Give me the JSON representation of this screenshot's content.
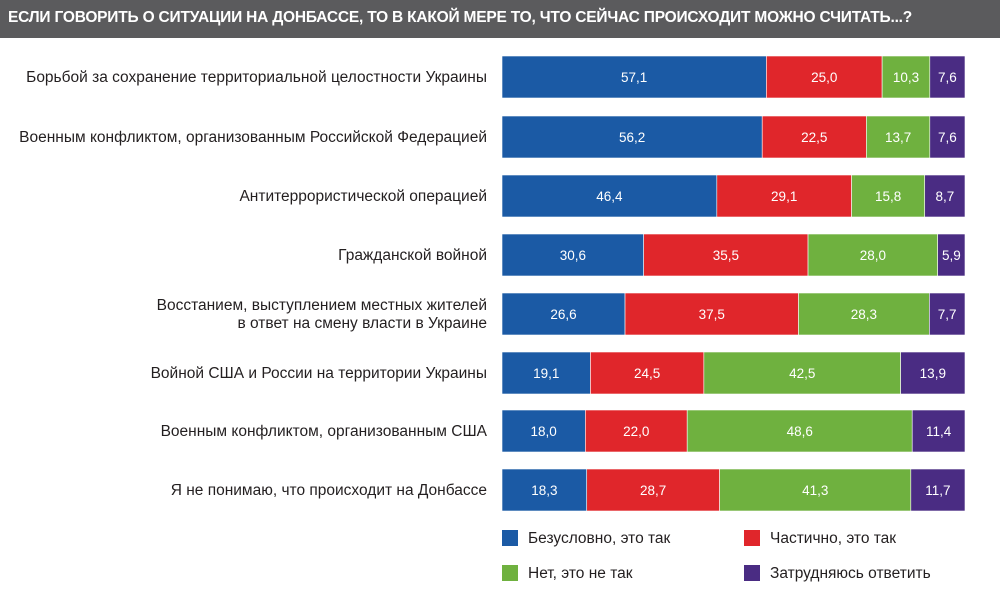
{
  "chart_data": {
    "type": "bar",
    "stacked": true,
    "orientation": "horizontal",
    "title": "ЕСЛИ ГОВОРИТЬ О СИТУАЦИИ НА ДОНБАССЕ, ТО В КАКОЙ МЕРЕ ТО, ЧТО СЕЙЧАС ПРОИСХОДИТ МОЖНО СЧИТАТЬ...?",
    "categories": [
      [
        "Борьбой за сохранение территориальной целостности Украины"
      ],
      [
        "Военным конфликтом, организованным Российской Федерацией"
      ],
      [
        "Антитеррористической операцией"
      ],
      [
        "Гражданской войной"
      ],
      [
        "Восстанием, выступлением местных жителей",
        "в ответ на смену власти в Украине"
      ],
      [
        "Войной США и России на территории Украины"
      ],
      [
        "Военным конфликтом, организованным США"
      ],
      [
        "Я не понимаю, что происходит на Донбассе"
      ]
    ],
    "series": [
      {
        "name": "Безусловно, это так",
        "color": "#1b5aa5",
        "values": [
          "57,1",
          "56,2",
          "46,4",
          "30,6",
          "26,6",
          "19,1",
          "18,0",
          "18,3"
        ]
      },
      {
        "name": "Частично, это так",
        "color": "#e0262b",
        "values": [
          "25,0",
          "22,5",
          "29,1",
          "35,5",
          "37,5",
          "24,5",
          "22,0",
          "28,7"
        ]
      },
      {
        "name": "Нет, это не так",
        "color": "#6fb13f",
        "values": [
          "10,3",
          "13,7",
          "15,8",
          "28,0",
          "28,3",
          "42,5",
          "48,6",
          "41,3"
        ]
      },
      {
        "name": "Затрудняюсь ответить",
        "color": "#4a2c83",
        "values": [
          "7,6",
          "7,6",
          "8,7",
          "5,9",
          "7,7",
          "13,9",
          "11,4",
          "11,7"
        ]
      }
    ],
    "legend_position": "bottom-right",
    "grid": false
  }
}
